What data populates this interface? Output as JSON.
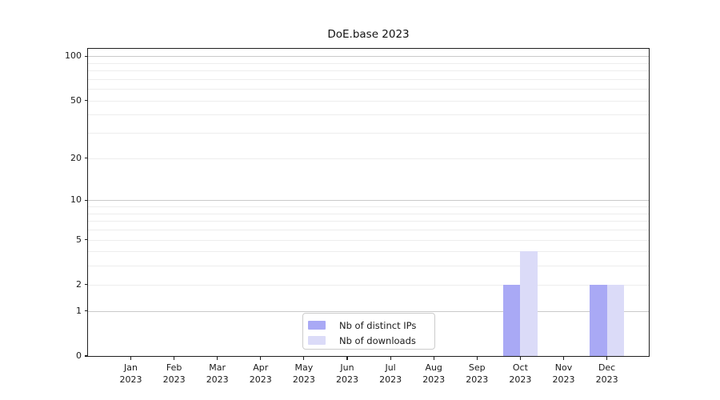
{
  "chart_data": {
    "type": "bar",
    "title": "DoE.base 2023",
    "categories": [
      "Jan 2023",
      "Feb 2023",
      "Mar 2023",
      "Apr 2023",
      "May 2023",
      "Jun 2023",
      "Jul 2023",
      "Aug 2023",
      "Sep 2023",
      "Oct 2023",
      "Nov 2023",
      "Dec 2023"
    ],
    "series": [
      {
        "name": "Nb of distinct IPs",
        "color": "#a9a9f5",
        "values": [
          0,
          0,
          0,
          0,
          0,
          0,
          0,
          0,
          0,
          2,
          0,
          2
        ]
      },
      {
        "name": "Nb of downloads",
        "color": "#dbdbf8",
        "values": [
          0,
          0,
          0,
          0,
          0,
          0,
          0,
          0,
          0,
          4,
          0,
          2
        ]
      }
    ],
    "xlabel": "",
    "ylabel": "",
    "y_scale": "log1p",
    "ylim": [
      0,
      112
    ],
    "y_ticks": [
      0,
      1,
      2,
      5,
      10,
      20,
      50,
      100
    ],
    "grid": {
      "major_lines": [
        1,
        10,
        100
      ],
      "minor_lines": [
        2,
        3,
        4,
        5,
        6,
        7,
        8,
        9,
        20,
        30,
        40,
        50,
        60,
        70,
        80,
        90
      ],
      "major_color": "#c9c9c9",
      "minor_color": "#ededed"
    },
    "legend": {
      "position": "lower center"
    }
  }
}
